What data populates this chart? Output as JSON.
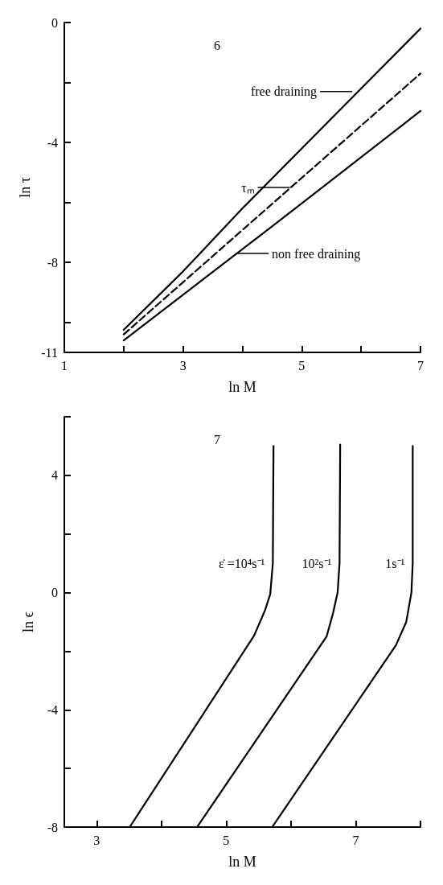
{
  "chart_data": [
    {
      "type": "line",
      "xlabel": "ln M",
      "ylabel": "ln τ",
      "xlim": [
        1,
        7
      ],
      "ylim": [
        -11,
        0
      ],
      "xticks": [
        1,
        {
          "value": 2,
          "label": null
        },
        3,
        {
          "value": 4,
          "label": null
        },
        5,
        {
          "value": 6,
          "label": null
        },
        7
      ],
      "yticks": [
        -11,
        {
          "value": -10,
          "label": null
        },
        -8,
        {
          "value": -6,
          "label": null
        },
        -4,
        {
          "value": -2,
          "label": null
        },
        0
      ],
      "grid": false,
      "marker": "none",
      "legend": false,
      "series": [
        {
          "color": "#000000",
          "line_style": "solid",
          "x": [
            2,
            3,
            4,
            5,
            6,
            7
          ],
          "values": [
            -10.25,
            -8.3,
            -6.2,
            -4.2,
            -2.2,
            -0.2
          ]
        },
        {
          "color": "#000000",
          "line_style": "dashed",
          "x": [
            2,
            4.5,
            7
          ],
          "values": [
            -10.4,
            -6.05,
            -1.7
          ]
        },
        {
          "color": "#000000",
          "line_style": "solid",
          "x": [
            2,
            4.5,
            7
          ],
          "values": [
            -10.6,
            -6.8,
            -2.95
          ]
        }
      ],
      "annotations": [
        "6",
        {
          "text": "free draining",
          "x": 5.85,
          "y": -2.3
        },
        {
          "text": "τₘ",
          "x": 4.8,
          "y": -5.5
        },
        {
          "text": "non free draining",
          "x": 3.9,
          "y": -7.7
        }
      ]
    },
    {
      "type": "line",
      "xlabel": "ln M",
      "ylabel": "ln ϵ",
      "xlim": [
        2.5,
        8
      ],
      "ylim": [
        -8,
        6
      ],
      "xticks": [
        3,
        {
          "value": 4,
          "label": null
        },
        5,
        {
          "value": 6,
          "label": null
        },
        7,
        {
          "value": 8,
          "label": null
        }
      ],
      "yticks": [
        -8,
        {
          "value": -6,
          "label": null
        },
        -4,
        {
          "value": -2,
          "label": null
        },
        0,
        {
          "value": 2,
          "label": null
        },
        4,
        {
          "value": 6,
          "label": null
        }
      ],
      "grid": false,
      "marker": "none",
      "legend": false,
      "series": [
        {
          "name": "ε̇ =10⁴s⁻¹",
          "color": "#000000",
          "line_style": "solid",
          "x": [
            3.51,
            5.43,
            5.6,
            5.68,
            5.72,
            5.73
          ],
          "values": [
            -8,
            -1.47,
            -0.6,
            -0.05,
            1,
            5
          ]
        },
        {
          "name": "10²s⁻¹",
          "color": "#000000",
          "line_style": "solid",
          "x": [
            4.55,
            6.55,
            6.65,
            6.72,
            6.75,
            6.76
          ],
          "values": [
            -8,
            -1.5,
            -0.7,
            0,
            1,
            5.05
          ]
        },
        {
          "name": "1s⁻¹",
          "color": "#000000",
          "line_style": "solid",
          "x": [
            5.71,
            7.62,
            7.78,
            7.86,
            7.88,
            7.88
          ],
          "values": [
            -8,
            -1.8,
            -1,
            0,
            1,
            5
          ]
        }
      ],
      "annotations": [
        "7"
      ]
    }
  ]
}
